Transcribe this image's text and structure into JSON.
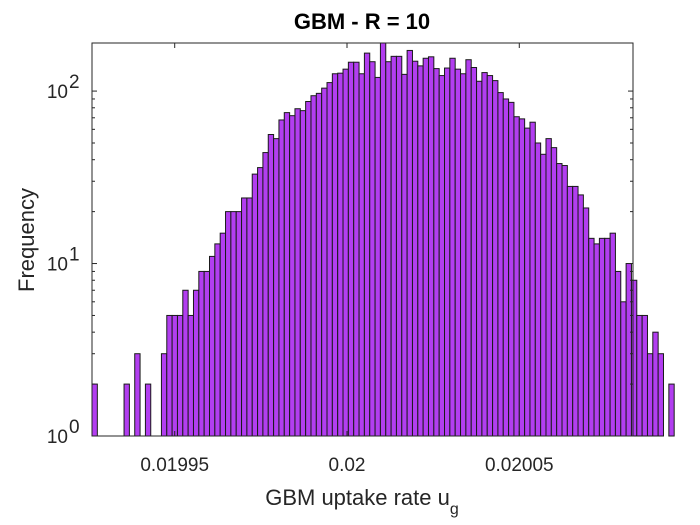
{
  "chart_data": {
    "type": "bar",
    "title": "GBM - R = 10",
    "xlabel": "GBM uptake rate u",
    "xlabel_subscript": "g",
    "ylabel": "Frequency",
    "y_scale": "log",
    "xlim": [
      0.019926,
      0.020083
    ],
    "ylim": [
      1,
      190
    ],
    "x_ticks": [
      {
        "value": 0.01995,
        "label": "0.01995"
      },
      {
        "value": 0.02,
        "label": "0.02"
      },
      {
        "value": 0.02005,
        "label": "0.02005"
      }
    ],
    "y_ticks": [
      {
        "value": 1,
        "base": "10",
        "exp": "0"
      },
      {
        "value": 10,
        "base": "10",
        "exp": "1"
      },
      {
        "value": 100,
        "base": "10",
        "exp": "2"
      }
    ],
    "bin_start": 0.019926,
    "bin_width": 1.55e-06,
    "values": [
      2,
      0,
      0,
      0,
      0,
      0,
      2,
      0,
      3,
      0,
      2,
      0,
      0,
      3,
      5,
      5,
      5,
      7,
      5,
      7,
      9,
      9,
      11,
      13,
      15,
      20,
      20,
      20,
      24,
      24,
      33,
      36,
      44,
      56,
      53,
      68,
      75,
      72,
      79,
      77,
      87,
      94,
      97,
      104,
      112,
      126,
      127,
      134,
      147,
      147,
      126,
      166,
      148,
      120,
      190,
      148,
      159,
      159,
      125,
      172,
      149,
      140,
      155,
      158,
      135,
      123,
      136,
      155,
      134,
      126,
      152,
      137,
      114,
      128,
      123,
      115,
      98,
      90,
      86,
      71,
      69,
      61,
      66,
      50,
      43,
      53,
      47,
      38,
      37,
      28,
      28,
      25,
      21,
      14,
      13,
      14,
      14,
      15,
      9,
      6,
      10,
      8,
      5,
      5,
      3,
      4,
      3,
      0,
      2,
      0,
      0,
      0,
      0,
      0,
      2,
      0,
      0,
      0,
      2,
      0,
      0,
      0,
      0,
      2
    ]
  }
}
